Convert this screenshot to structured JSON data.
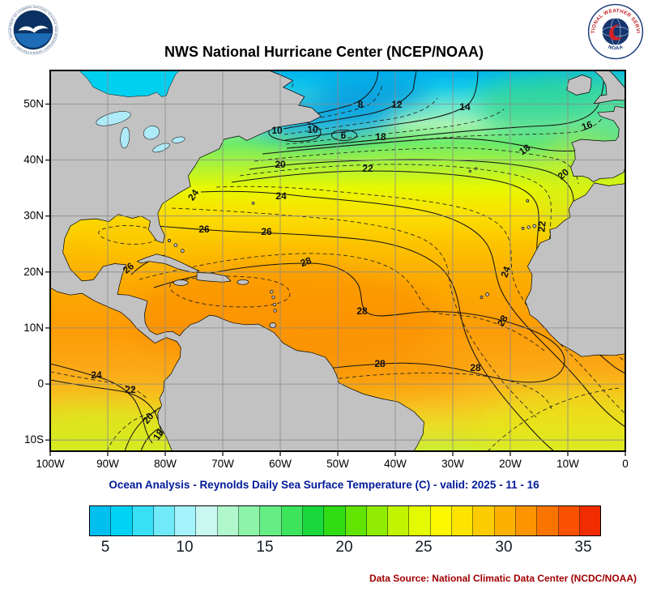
{
  "header": {
    "title": "NWS National Hurricane Center (NCEP/NOAA)",
    "noaa_ring_text": "NATIONAL OCEANIC AND ATMOSPHERIC ADMINISTRATION - U.S. DEPARTMENT OF COMMERCE",
    "nws_ring_top": "NATIONAL WEATHER SERVICE",
    "nws_ring_bottom": "NOAA"
  },
  "map": {
    "lat_labels": [
      "50N",
      "40N",
      "30N",
      "20N",
      "10N",
      "0",
      "10S"
    ],
    "lon_labels": [
      "100W",
      "90W",
      "80W",
      "70W",
      "60W",
      "50W",
      "40W",
      "30W",
      "20W",
      "10W",
      "0"
    ],
    "contour_labels": [
      "8",
      "12",
      "14",
      "16",
      "10",
      "10",
      "6",
      "18",
      "18",
      "20",
      "22",
      "20",
      "24",
      "24",
      "22",
      "26",
      "26",
      "28",
      "26",
      "24",
      "28",
      "28",
      "28",
      "28",
      "24",
      "22",
      "20",
      "18"
    ]
  },
  "caption": "Ocean Analysis - Reynolds Daily Sea Surface Temperature (C) - valid: 2025 - 11 - 16",
  "colorbar": {
    "tick_labels": [
      "5",
      "10",
      "15",
      "20",
      "25",
      "30",
      "35"
    ],
    "colors": [
      "#00c0f0",
      "#00d2f4",
      "#38e0f6",
      "#70eaf8",
      "#a4f2fa",
      "#c8f8f0",
      "#b0f8cc",
      "#8cf4a8",
      "#64ee84",
      "#3ce45c",
      "#18d83c",
      "#30dc14",
      "#60e400",
      "#90ec00",
      "#c0f400",
      "#e4fa00",
      "#fcf800",
      "#fce400",
      "#fccc00",
      "#fcb000",
      "#fc9400",
      "#fc7400",
      "#f85200",
      "#f02c00"
    ]
  },
  "footer": {
    "data_source": "Data Source: National Climatic Data Center (NCDC/NOAA)"
  },
  "chart_data": {
    "type": "heatmap",
    "title": "NWS National Hurricane Center (NCEP/NOAA)",
    "subtitle": "Ocean Analysis - Reynolds Daily Sea Surface Temperature (C) - valid: 2025 - 11 - 16",
    "variable": "Reynolds Daily Sea Surface Temperature",
    "units": "C",
    "valid_date": "2025 - 11 - 16",
    "x_ticks": [
      "100W",
      "90W",
      "80W",
      "70W",
      "60W",
      "50W",
      "40W",
      "30W",
      "20W",
      "10W",
      "0"
    ],
    "y_ticks": [
      "50N",
      "40N",
      "30N",
      "20N",
      "10N",
      "0",
      "10S"
    ],
    "colorbar_ticks": [
      5,
      10,
      15,
      20,
      25,
      30,
      35
    ],
    "colorbar_range_c": [
      4,
      36
    ],
    "contour_interval_c": 2,
    "visible_contour_labels_c": [
      8,
      12,
      14,
      16,
      10,
      10,
      6,
      18,
      18,
      20,
      22,
      20,
      24,
      24,
      22,
      26,
      26,
      28,
      26,
      24,
      28,
      28,
      28,
      28,
      24,
      22,
      20,
      18
    ],
    "data_source": "National Climatic Data Center (NCDC/NOAA)"
  }
}
